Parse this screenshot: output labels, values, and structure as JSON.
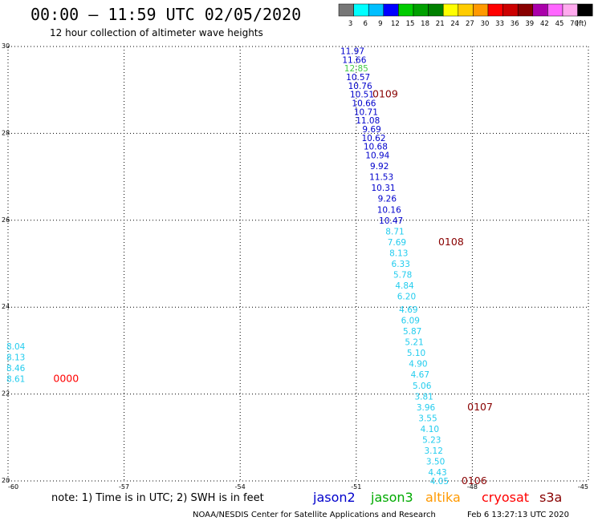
{
  "title": "00:00 – 11:59 UTC 02/05/2020",
  "subtitle": "12 hour collection of altimeter wave heights",
  "colorbar": {
    "colors": [
      "#777777",
      "#00ffff",
      "#00bfff",
      "#0000ff",
      "#00cc00",
      "#00a000",
      "#008000",
      "#ffff00",
      "#ffcc00",
      "#ff9900",
      "#ff0000",
      "#cc0000",
      "#880000",
      "#aa00aa",
      "#ff66ff",
      "#ffaaee",
      "#000000"
    ],
    "labels": [
      "3",
      "6",
      "9",
      "12",
      "15",
      "18",
      "21",
      "24",
      "27",
      "30",
      "33",
      "36",
      "39",
      "42",
      "45",
      "70",
      "(ft)"
    ]
  },
  "axes": {
    "x_labels": [
      "-60",
      "-57",
      "-54",
      "-51",
      "-48",
      "-45"
    ],
    "y_labels": [
      "30",
      "28",
      "26",
      "24",
      "22",
      "20"
    ],
    "xlim": [
      -60,
      -45
    ],
    "ylim": [
      20,
      30
    ],
    "grid": true
  },
  "observations": [
    {
      "lon": -51.1,
      "lat": 29.9,
      "value": "11.97",
      "color": "#0000cc"
    },
    {
      "lon": -51.05,
      "lat": 29.7,
      "value": "11.66",
      "color": "#0000cc"
    },
    {
      "lon": -51.0,
      "lat": 29.5,
      "value": "12.85",
      "color": "#44cc44"
    },
    {
      "lon": -50.95,
      "lat": 29.3,
      "value": "10.57",
      "color": "#0000cc"
    },
    {
      "lon": -50.9,
      "lat": 29.1,
      "value": "10.76",
      "color": "#0000cc"
    },
    {
      "lon": -50.85,
      "lat": 28.9,
      "value": "10.51",
      "color": "#0000cc"
    },
    {
      "lon": -50.8,
      "lat": 28.7,
      "value": "10.66",
      "color": "#0000cc"
    },
    {
      "lon": -50.75,
      "lat": 28.5,
      "value": "10.71",
      "color": "#0000cc"
    },
    {
      "lon": -50.7,
      "lat": 28.3,
      "value": "11.08",
      "color": "#0000cc"
    },
    {
      "lon": -50.6,
      "lat": 28.1,
      "value": "9.69",
      "color": "#0000cc"
    },
    {
      "lon": -50.55,
      "lat": 27.9,
      "value": "10.62",
      "color": "#0000cc"
    },
    {
      "lon": -50.5,
      "lat": 27.7,
      "value": "10.68",
      "color": "#0000cc"
    },
    {
      "lon": -50.45,
      "lat": 27.5,
      "value": "10.94",
      "color": "#0000cc"
    },
    {
      "lon": -50.4,
      "lat": 27.25,
      "value": "9.92",
      "color": "#0000cc"
    },
    {
      "lon": -50.35,
      "lat": 27.0,
      "value": "11.53",
      "color": "#0000cc"
    },
    {
      "lon": -50.3,
      "lat": 26.75,
      "value": "10.31",
      "color": "#0000cc"
    },
    {
      "lon": -50.2,
      "lat": 26.5,
      "value": "9.26",
      "color": "#0000cc"
    },
    {
      "lon": -50.15,
      "lat": 26.25,
      "value": "10.16",
      "color": "#0000cc"
    },
    {
      "lon": -50.1,
      "lat": 26.0,
      "value": "10.47",
      "color": "#0000cc"
    },
    {
      "lon": -50.0,
      "lat": 25.75,
      "value": "8.71",
      "color": "#22ccee"
    },
    {
      "lon": -49.95,
      "lat": 25.5,
      "value": "7.69",
      "color": "#22ccee"
    },
    {
      "lon": -49.9,
      "lat": 25.25,
      "value": "8.13",
      "color": "#22ccee"
    },
    {
      "lon": -49.85,
      "lat": 25.0,
      "value": "6.33",
      "color": "#22ccee"
    },
    {
      "lon": -49.8,
      "lat": 24.75,
      "value": "5.78",
      "color": "#22ccee"
    },
    {
      "lon": -49.75,
      "lat": 24.5,
      "value": "4.84",
      "color": "#22ccee"
    },
    {
      "lon": -49.7,
      "lat": 24.25,
      "value": "6.20",
      "color": "#22ccee"
    },
    {
      "lon": -49.65,
      "lat": 23.95,
      "value": "4.69",
      "color": "#22ccee"
    },
    {
      "lon": -49.6,
      "lat": 23.7,
      "value": "6.09",
      "color": "#22ccee"
    },
    {
      "lon": -49.55,
      "lat": 23.45,
      "value": "5.87",
      "color": "#22ccee"
    },
    {
      "lon": -49.5,
      "lat": 23.2,
      "value": "5.21",
      "color": "#22ccee"
    },
    {
      "lon": -49.45,
      "lat": 22.95,
      "value": "5.10",
      "color": "#22ccee"
    },
    {
      "lon": -49.4,
      "lat": 22.7,
      "value": "4.90",
      "color": "#22ccee"
    },
    {
      "lon": -49.35,
      "lat": 22.45,
      "value": "4.67",
      "color": "#22ccee"
    },
    {
      "lon": -49.3,
      "lat": 22.2,
      "value": "5.06",
      "color": "#22ccee"
    },
    {
      "lon": -49.25,
      "lat": 21.95,
      "value": "3.81",
      "color": "#22ccee"
    },
    {
      "lon": -49.2,
      "lat": 21.7,
      "value": "3.96",
      "color": "#22ccee"
    },
    {
      "lon": -49.15,
      "lat": 21.45,
      "value": "3.55",
      "color": "#22ccee"
    },
    {
      "lon": -49.1,
      "lat": 21.2,
      "value": "4.10",
      "color": "#22ccee"
    },
    {
      "lon": -49.05,
      "lat": 20.95,
      "value": "5.23",
      "color": "#22ccee"
    },
    {
      "lon": -49.0,
      "lat": 20.7,
      "value": "3.12",
      "color": "#22ccee"
    },
    {
      "lon": -48.95,
      "lat": 20.45,
      "value": "3.50",
      "color": "#22ccee"
    },
    {
      "lon": -48.9,
      "lat": 20.2,
      "value": "4.43",
      "color": "#22ccee"
    },
    {
      "lon": -48.85,
      "lat": 20.0,
      "value": "4.05",
      "color": "#22ccee"
    },
    {
      "lon": -59.8,
      "lat": 23.1,
      "value": "8.04",
      "color": "#22ccee"
    },
    {
      "lon": -59.8,
      "lat": 22.85,
      "value": "8.13",
      "color": "#22ccee"
    },
    {
      "lon": -59.8,
      "lat": 22.6,
      "value": "8.46",
      "color": "#22ccee"
    },
    {
      "lon": -59.8,
      "lat": 22.35,
      "value": "8.61",
      "color": "#22ccee"
    }
  ],
  "passes": [
    {
      "lon": -50.25,
      "lat": 28.9,
      "label": "0109",
      "color": "#880000"
    },
    {
      "lon": -48.55,
      "lat": 25.5,
      "label": "0108",
      "color": "#880000"
    },
    {
      "lon": -47.8,
      "lat": 21.7,
      "label": "0107",
      "color": "#880000"
    },
    {
      "lon": -47.95,
      "lat": 20.0,
      "label": "0106",
      "color": "#880000"
    },
    {
      "lon": -58.5,
      "lat": 22.35,
      "label": "0000",
      "color": "#ff0000"
    }
  ],
  "footer": {
    "note": "note: 1) Time is in UTC; 2) SWH is in feet",
    "satellites": [
      {
        "name": "jason2",
        "color": "#0000cc"
      },
      {
        "name": "jason3",
        "color": "#00aa00"
      },
      {
        "name": "altika",
        "color": "#ff9900"
      },
      {
        "name": "cryosat",
        "color": "#ff0000"
      },
      {
        "name": "s3a",
        "color": "#880000"
      }
    ],
    "credit": "NOAA/NESDIS Center for Satellite Applications and Research",
    "timestamp": "Feb  6 13:27:13 UTC 2020"
  }
}
